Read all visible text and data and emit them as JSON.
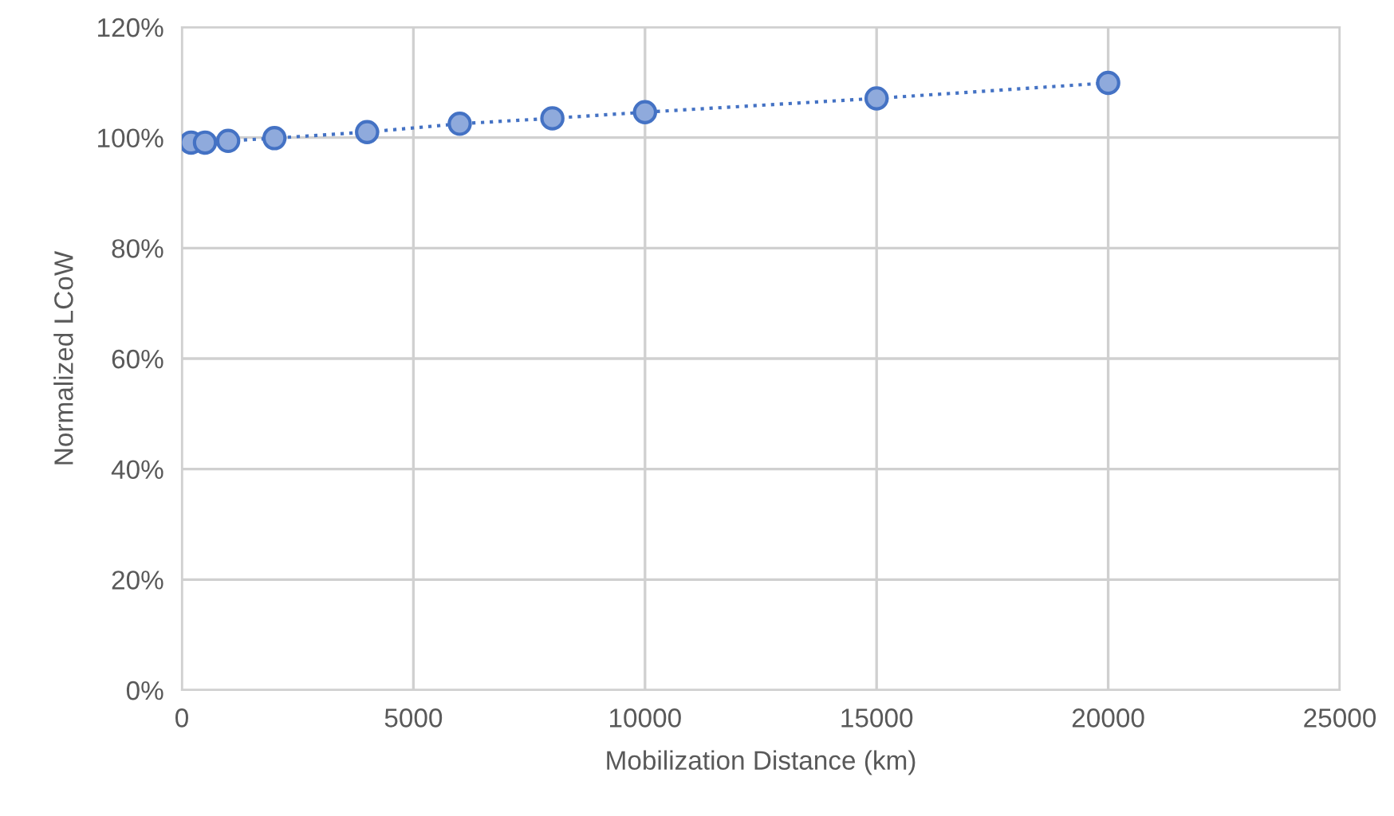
{
  "chart_data": {
    "type": "line",
    "xlabel": "Mobilization Distance (km)",
    "ylabel": "Normalized LCoW",
    "series": [
      {
        "color": "#4472c4",
        "x": [
          200,
          500,
          1000,
          2000,
          4000,
          6000,
          8000,
          10000,
          15000,
          20000
        ],
        "values": [
          99.1,
          99.1,
          99.4,
          99.9,
          101.0,
          102.5,
          103.5,
          104.6,
          107.1,
          109.9
        ]
      }
    ],
    "marker": "circle",
    "line_style": "dotted",
    "xlim": [
      0,
      25000
    ],
    "xticks": [
      0,
      5000,
      10000,
      15000,
      20000,
      25000
    ],
    "ylim": [
      0,
      120
    ],
    "yticks": [
      {
        "value": 0,
        "label": "0%"
      },
      {
        "value": 20,
        "label": "20%"
      },
      {
        "value": 40,
        "label": "40%"
      },
      {
        "value": 60,
        "label": "60%"
      },
      {
        "value": 80,
        "label": "80%"
      },
      {
        "value": 100,
        "label": "100%"
      },
      {
        "value": 120,
        "label": "120%"
      }
    ],
    "grid": true
  }
}
